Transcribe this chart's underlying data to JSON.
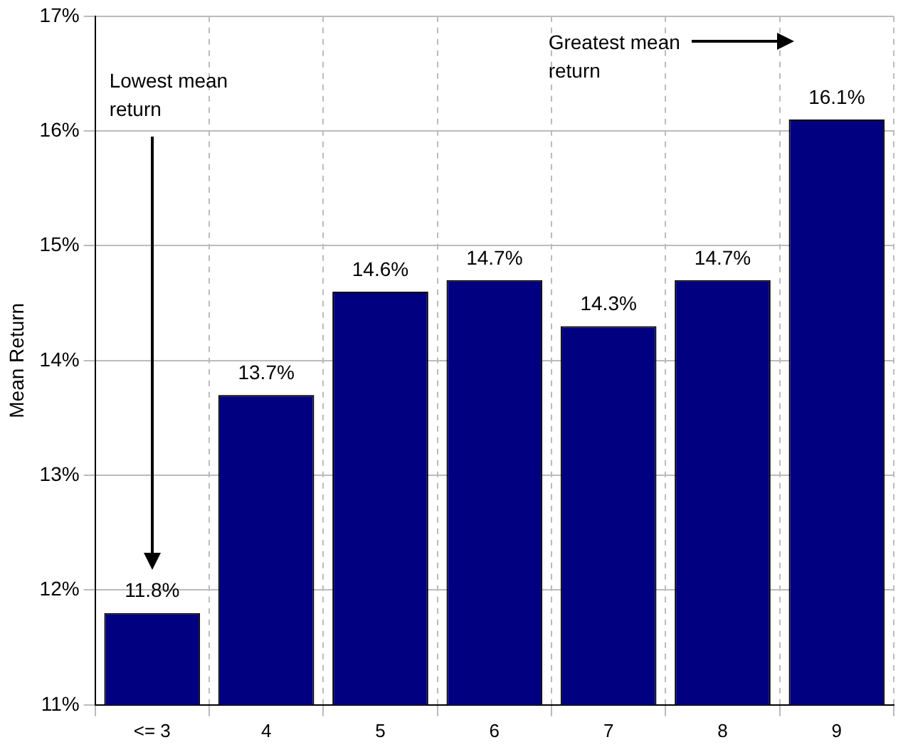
{
  "chart_data": {
    "type": "bar",
    "ylabel": "Mean Return",
    "categories": [
      "<= 3",
      "4",
      "5",
      "6",
      "7",
      "8",
      "9"
    ],
    "values": [
      11.8,
      13.7,
      14.6,
      14.7,
      14.3,
      14.7,
      16.1
    ],
    "value_labels": [
      "11.8%",
      "13.7%",
      "14.6%",
      "14.7%",
      "14.3%",
      "14.7%",
      "16.1%"
    ],
    "color": "#000080",
    "ylim": [
      11,
      17
    ],
    "yticks": [
      {
        "value": 11,
        "label": "11%"
      },
      {
        "value": 12,
        "label": "12%"
      },
      {
        "value": 13,
        "label": "13%"
      },
      {
        "value": 14,
        "label": "14%"
      },
      {
        "value": 15,
        "label": "15%"
      },
      {
        "value": 16,
        "label": "16%"
      },
      {
        "value": 17,
        "label": "17%"
      }
    ],
    "grid": true,
    "legend": false,
    "annotations": [
      "Lowest mean return",
      "Greatest mean return"
    ]
  }
}
